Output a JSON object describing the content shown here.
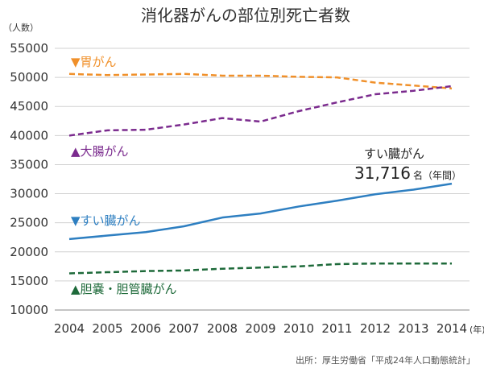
{
  "chart_data": {
    "type": "line",
    "title": "消化器がんの部位別死亡者数",
    "ylabel": "（人数）",
    "xlabel": "",
    "x_unit": "(年)",
    "ylim": [
      10000,
      55000
    ],
    "yticks": [
      10000,
      15000,
      20000,
      25000,
      30000,
      35000,
      40000,
      45000,
      50000,
      55000
    ],
    "grid": "horizontal",
    "categories": [
      "2004",
      "2005",
      "2006",
      "2007",
      "2008",
      "2009",
      "2010",
      "2011",
      "2012",
      "2013",
      "2014"
    ],
    "series": [
      {
        "name": "胃がん",
        "marker": "▼",
        "style": "dashed",
        "color": "#f0902a",
        "values": [
          50600,
          50400,
          50500,
          50600,
          50300,
          50300,
          50100,
          50000,
          49100,
          48600,
          48100
        ]
      },
      {
        "name": "大腸がん",
        "marker": "▲",
        "style": "dashed",
        "color": "#7b2b8e",
        "values": [
          40000,
          40900,
          41000,
          41900,
          43000,
          42400,
          44200,
          45700,
          47100,
          47700,
          48500
        ]
      },
      {
        "name": "すい臓がん",
        "marker": "▼",
        "style": "solid",
        "color": "#2e7fc1",
        "values": [
          22200,
          22800,
          23400,
          24400,
          25900,
          26600,
          27800,
          28800,
          29900,
          30700,
          31716
        ]
      },
      {
        "name": "胆嚢・胆管臓がん",
        "marker": "▲",
        "style": "dashed",
        "color": "#1e6a3a",
        "values": [
          16300,
          16500,
          16700,
          16800,
          17100,
          17300,
          17500,
          17900,
          18000,
          18000,
          18000
        ]
      }
    ],
    "annotation": {
      "line1": "すい臓がん",
      "value": "31,716",
      "unit": "名（年間）"
    },
    "source": "出所：厚生労働省「平成24年人口動態統計」"
  }
}
